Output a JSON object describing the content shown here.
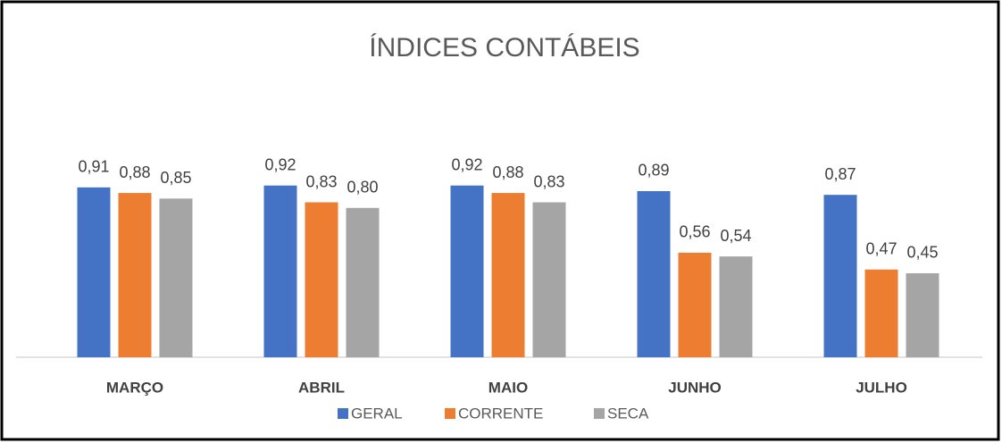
{
  "chart_data": {
    "type": "bar",
    "title": "ÍNDICES CONTÁBEIS",
    "categories": [
      "MARÇO",
      "ABRIL",
      "MAIO",
      "JUNHO",
      "JULHO"
    ],
    "series": [
      {
        "name": "GERAL",
        "color": "#4472c4",
        "values": [
          0.91,
          0.92,
          0.92,
          0.89,
          0.87
        ],
        "value_labels": [
          "0,91",
          "0,92",
          "0,92",
          "0,89",
          "0,87"
        ]
      },
      {
        "name": "CORRENTE",
        "color": "#ed7d31",
        "values": [
          0.88,
          0.83,
          0.88,
          0.56,
          0.47
        ],
        "value_labels": [
          "0,88",
          "0,83",
          "0,88",
          "0,56",
          "0,47"
        ]
      },
      {
        "name": "SECA",
        "color": "#a5a5a5",
        "values": [
          0.85,
          0.8,
          0.83,
          0.54,
          0.45
        ],
        "value_labels": [
          "0,85",
          "0,80",
          "0,83",
          "0,54",
          "0,45"
        ]
      }
    ],
    "ylim": [
      0,
      1
    ]
  }
}
